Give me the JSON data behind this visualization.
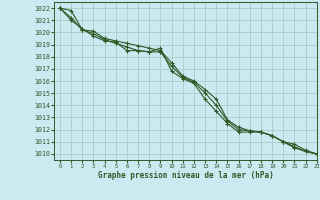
{
  "xlabel": "Graphe pression niveau de la mer (hPa)",
  "bg_color": "#cce8f0",
  "grid_color": "#99ccbb",
  "line_color": "#2d5a27",
  "xlim": [
    -0.5,
    23
  ],
  "ylim": [
    1009.5,
    1022.5
  ],
  "yticks": [
    1010,
    1011,
    1012,
    1013,
    1014,
    1015,
    1016,
    1017,
    1018,
    1019,
    1020,
    1021,
    1022
  ],
  "xticks": [
    0,
    1,
    2,
    3,
    4,
    5,
    6,
    7,
    8,
    9,
    10,
    11,
    12,
    13,
    14,
    15,
    16,
    17,
    18,
    19,
    20,
    21,
    22,
    23
  ],
  "line1_x": [
    0,
    1,
    2,
    3,
    4,
    5,
    6,
    7,
    8,
    9,
    10,
    11,
    12,
    13,
    14,
    15,
    16,
    17,
    18,
    19,
    20,
    21,
    22,
    23
  ],
  "line1_y": [
    1022.0,
    1021.8,
    1020.2,
    1020.1,
    1019.5,
    1019.3,
    1019.1,
    1018.9,
    1018.7,
    1018.5,
    1017.5,
    1016.4,
    1016.0,
    1015.3,
    1014.5,
    1012.8,
    1012.2,
    1011.9,
    1011.8,
    1011.5,
    1011.0,
    1010.5,
    1010.2,
    1010.0
  ],
  "line2_x": [
    0,
    1,
    2,
    3,
    4,
    5,
    6,
    7,
    8,
    9,
    10,
    11,
    12,
    13,
    14,
    15,
    16,
    17,
    18,
    19,
    20,
    21,
    22,
    23
  ],
  "line2_y": [
    1022.0,
    1021.0,
    1020.3,
    1019.7,
    1019.3,
    1019.2,
    1018.5,
    1018.5,
    1018.4,
    1018.7,
    1016.8,
    1016.2,
    1015.8,
    1014.5,
    1013.5,
    1012.5,
    1011.8,
    1011.8,
    1011.8,
    1011.5,
    1011.0,
    1010.8,
    1010.3,
    1010.0
  ],
  "line3_x": [
    0,
    1,
    2,
    3,
    4,
    5,
    6,
    7,
    8,
    9,
    10,
    11,
    12,
    13,
    14,
    15,
    16,
    17,
    18,
    19,
    20,
    21,
    22,
    23
  ],
  "line3_y": [
    1022.0,
    1021.2,
    1020.2,
    1019.9,
    1019.4,
    1019.1,
    1018.8,
    1018.5,
    1018.4,
    1018.4,
    1017.2,
    1016.3,
    1015.9,
    1015.0,
    1014.0,
    1012.7,
    1012.0,
    1011.9,
    1011.8,
    1011.5,
    1011.0,
    1010.6,
    1010.2,
    1010.0
  ]
}
